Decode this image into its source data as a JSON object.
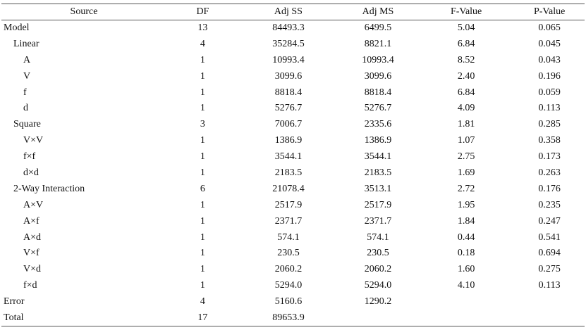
{
  "table": {
    "header": [
      "Source",
      "DF",
      "Adj SS",
      "Adj MS",
      "F-Value",
      "P-Value"
    ],
    "rows": [
      [
        "Model",
        "13",
        "84493.3",
        "6499.5",
        "5.04",
        "0.065"
      ],
      [
        "Linear",
        "4",
        "35284.5",
        "8821.1",
        "6.84",
        "0.045"
      ],
      [
        "A",
        "1",
        "10993.4",
        "10993.4",
        "8.52",
        "0.043"
      ],
      [
        "V",
        "1",
        "3099.6",
        "3099.6",
        "2.40",
        "0.196"
      ],
      [
        "f",
        "1",
        "8818.4",
        "8818.4",
        "6.84",
        "0.059"
      ],
      [
        "d",
        "1",
        "5276.7",
        "5276.7",
        "4.09",
        "0.113"
      ],
      [
        "Square",
        "3",
        "7006.7",
        "2335.6",
        "1.81",
        "0.285"
      ],
      [
        "V×V",
        "1",
        "1386.9",
        "1386.9",
        "1.07",
        "0.358"
      ],
      [
        "f×f",
        "1",
        "3544.1",
        "3544.1",
        "2.75",
        "0.173"
      ],
      [
        "d×d",
        "1",
        "2183.5",
        "2183.5",
        "1.69",
        "0.263"
      ],
      [
        "2-Way Interaction",
        "6",
        "21078.4",
        "3513.1",
        "2.72",
        "0.176"
      ],
      [
        "A×V",
        "1",
        "2517.9",
        "2517.9",
        "1.95",
        "0.235"
      ],
      [
        "A×f",
        "1",
        "2371.7",
        "2371.7",
        "1.84",
        "0.247"
      ],
      [
        "A×d",
        "1",
        "574.1",
        "574.1",
        "0.44",
        "0.541"
      ],
      [
        "V×f",
        "1",
        "230.5",
        "230.5",
        "0.18",
        "0.694"
      ],
      [
        "V×d",
        "1",
        "2060.2",
        "2060.2",
        "1.60",
        "0.275"
      ],
      [
        "f×d",
        "1",
        "5294.0",
        "5294.0",
        "4.10",
        "0.113"
      ],
      [
        "Error",
        "4",
        "5160.6",
        "1290.2"
      ],
      [
        "Total",
        "17",
        "89653.9"
      ]
    ]
  }
}
